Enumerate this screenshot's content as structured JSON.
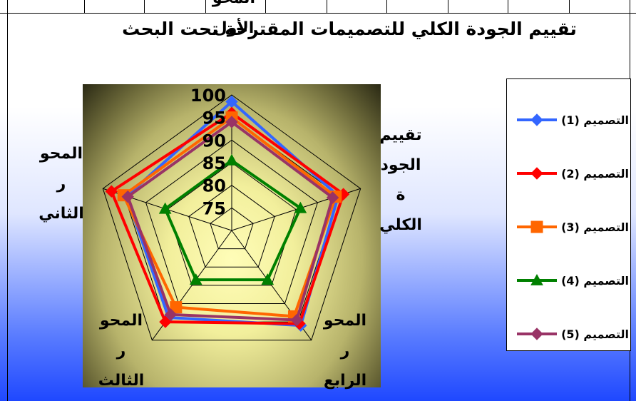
{
  "chart_data": {
    "type": "radar",
    "title": "تقييم الجودة الكلي للتصميمات المقترحة تحت البحث",
    "axes": [
      "المحور الأول",
      "تقييم الجودة الكلي",
      "المحور الرابع",
      "المحور الثالث",
      "المحور الثاني"
    ],
    "axis_label_lines": [
      [
        "المحو",
        "الأول"
      ],
      [
        "تقييم",
        "الجود",
        "ة",
        "الكلي"
      ],
      [
        "المحو",
        "ر",
        "الرابع"
      ],
      [
        "المحو",
        "ر",
        "الثالث"
      ],
      [
        "المحو",
        "ر",
        "الثاني"
      ]
    ],
    "r_ticks": [
      "75",
      "80",
      "85",
      "90",
      "95",
      "100"
    ],
    "r_range": [
      70,
      100
    ],
    "series": [
      {
        "name": "التصميم (1)",
        "color": "#3366ff",
        "marker": "diamond",
        "values": [
          98.5,
          94.8,
          96.0,
          93.8,
          94.5
        ]
      },
      {
        "name": "التصميم (2)",
        "color": "#ff0000",
        "marker": "diamond",
        "values": [
          96.0,
          96.0,
          95.5,
          95.0,
          98.0
        ]
      },
      {
        "name": "التصميم (3)",
        "color": "#ff6600",
        "marker": "square",
        "values": [
          95.0,
          94.2,
          93.5,
          91.0,
          95.2
        ]
      },
      {
        "name": "التصميم (4)",
        "color": "#008000",
        "marker": "triangle",
        "values": [
          85.5,
          86.0,
          83.5,
          83.5,
          85.5
        ]
      },
      {
        "name": "التصميم (5)",
        "color": "#993366",
        "marker": "diamond",
        "values": [
          94.0,
          93.5,
          94.5,
          93.0,
          94.2
        ]
      }
    ]
  }
}
